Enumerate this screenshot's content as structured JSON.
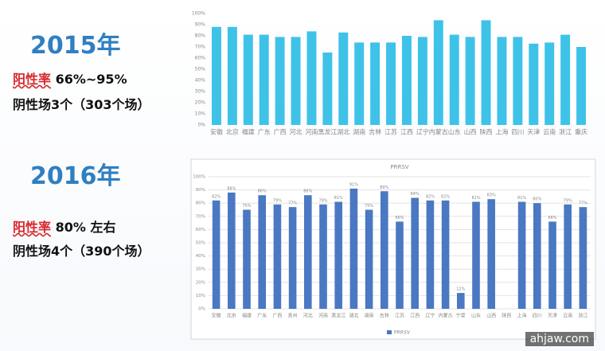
{
  "slide": {
    "year1": "2015年",
    "rate_label1": "阳性率",
    "rate1": "66%~95%",
    "negative1": "阴性场3个（303个场）",
    "year2": "2016年",
    "rate_label2": "阳性率",
    "rate2": "80% 左右",
    "negative2": "阴性场4个（390个场）",
    "watermark": "ahjaw.com"
  },
  "chart_data": [
    {
      "type": "bar",
      "categories": [
        "安徽",
        "北京",
        "福建",
        "广东",
        "广西",
        "河北",
        "河南",
        "黑龙江",
        "湖北",
        "湖南",
        "吉林",
        "江苏",
        "江西",
        "辽宁",
        "内蒙古",
        "山东",
        "山西",
        "陕西",
        "上海",
        "四川",
        "天津",
        "云南",
        "浙江",
        "重庆"
      ],
      "values": [
        88,
        88,
        81,
        81,
        79,
        79,
        84,
        65,
        83,
        74,
        74,
        74,
        80,
        79,
        94,
        81,
        79,
        94,
        79,
        79,
        73,
        74,
        81,
        70
      ],
      "color": "#3fc2e8",
      "ylim": [
        0,
        100
      ],
      "yticks": [
        {
          "value": 0,
          "label": "0%"
        },
        {
          "value": 10,
          "label": "10%"
        },
        {
          "value": 20,
          "label": "20%"
        },
        {
          "value": 30,
          "label": "30%"
        },
        {
          "value": 40,
          "label": "40%"
        },
        {
          "value": 50,
          "label": "50%"
        },
        {
          "value": 60,
          "label": "60%"
        },
        {
          "value": 70,
          "label": "70%"
        },
        {
          "value": 80,
          "label": "80%"
        },
        {
          "value": 90,
          "label": "90%"
        },
        {
          "value": 100,
          "label": "100%"
        }
      ],
      "grid": false
    },
    {
      "type": "bar",
      "title": "PRRSV",
      "categories": [
        "安徽",
        "北京",
        "福建",
        "广东",
        "广西",
        "贵州",
        "河北",
        "河南",
        "黑龙江",
        "湖北",
        "湖南",
        "吉林",
        "江苏",
        "江西",
        "辽宁",
        "内蒙古",
        "宁夏",
        "山东",
        "山西",
        "陕西",
        "上海",
        "四川",
        "天津",
        "云南",
        "浙江"
      ],
      "series": [
        {
          "name": "PRRSV",
          "color": "#4a78c2",
          "values": [
            82,
            88,
            75,
            86,
            79,
            77,
            86,
            79,
            81,
            91,
            75,
            89,
            66,
            84,
            82,
            82,
            12,
            81,
            83,
            null,
            81,
            80,
            66,
            79,
            77
          ],
          "value_labels": [
            "82%",
            "88%",
            "75%",
            "86%",
            "79%",
            "77%",
            "86%",
            "79%",
            "81%",
            "91%",
            "75%",
            "89%",
            "66%",
            "84%",
            "82%",
            "82%",
            "12%",
            "81%",
            "83%",
            null,
            "81%",
            "80%",
            "66%",
            "79%",
            "77%"
          ]
        }
      ],
      "ylim": [
        0,
        100
      ],
      "yticks": [
        {
          "value": 0,
          "label": "0%"
        },
        {
          "value": 10,
          "label": "10%"
        },
        {
          "value": 20,
          "label": "20%"
        },
        {
          "value": 30,
          "label": "30%"
        },
        {
          "value": 40,
          "label": "40%"
        },
        {
          "value": 50,
          "label": "50%"
        },
        {
          "value": 60,
          "label": "60%"
        },
        {
          "value": 70,
          "label": "70%"
        },
        {
          "value": 80,
          "label": "80%"
        },
        {
          "value": 90,
          "label": "90%"
        },
        {
          "value": 100,
          "label": "100%"
        }
      ],
      "grid": true,
      "legend": "bottom"
    }
  ]
}
